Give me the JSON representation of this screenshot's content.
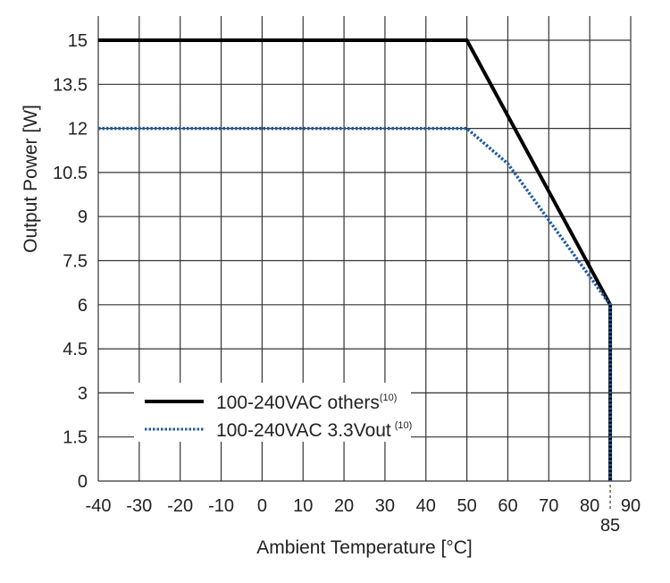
{
  "chart_data": {
    "type": "line",
    "title": "",
    "xlabel": "Ambient Temperature [°C]",
    "ylabel": "Output Power [W]",
    "xlim": [
      -40,
      90
    ],
    "ylim": [
      0,
      15
    ],
    "x_ticks": [
      -40,
      -30,
      -20,
      -10,
      0,
      10,
      20,
      30,
      40,
      50,
      60,
      70,
      80,
      90
    ],
    "y_ticks": [
      0,
      1.5,
      3,
      4.5,
      6,
      7.5,
      9,
      10.5,
      12,
      13.5,
      15
    ],
    "extra_x_tick": 85,
    "grid": true,
    "legend_placement": "bottom-left",
    "series": [
      {
        "name": "100-240VAC others",
        "superscript": "(10)",
        "color": "#000000",
        "style": "solid",
        "points": [
          [
            -40,
            15
          ],
          [
            50,
            15
          ],
          [
            85,
            6
          ],
          [
            85,
            0
          ]
        ]
      },
      {
        "name": "100-240VAC 3.3Vout",
        "superscript": "(10)",
        "color": "#1f5a9e",
        "style": "dotted",
        "points": [
          [
            -40,
            12
          ],
          [
            50,
            12
          ],
          [
            60,
            10.8
          ],
          [
            85,
            6
          ],
          [
            85,
            0
          ]
        ]
      }
    ]
  }
}
